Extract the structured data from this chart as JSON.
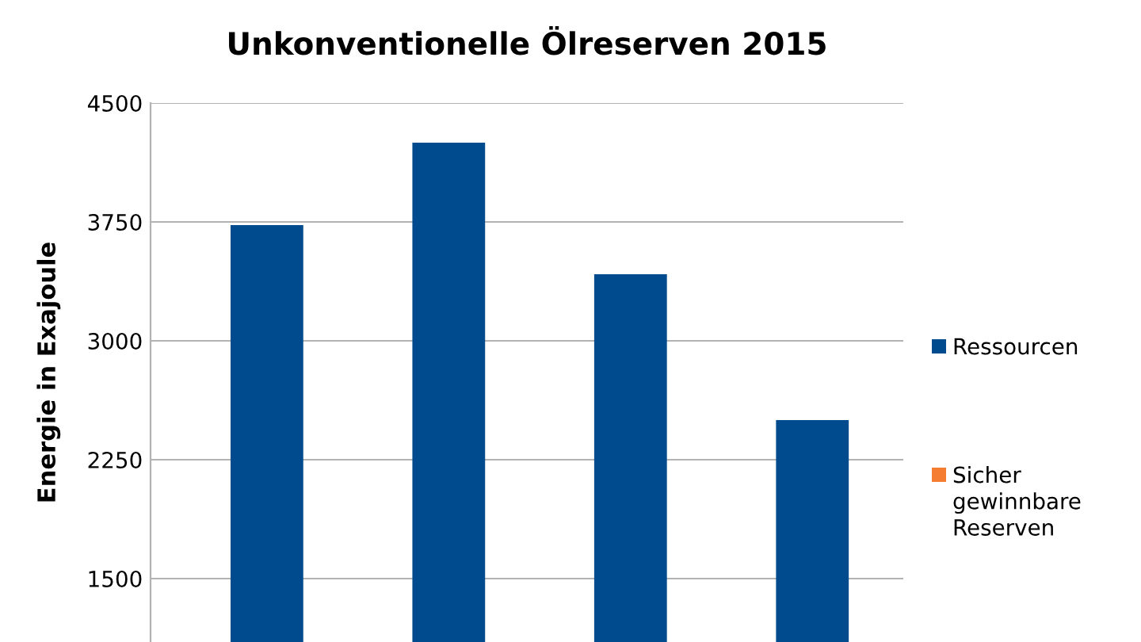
{
  "chart_data": {
    "type": "bar",
    "title": "Unkonventionelle Ölreserven 2015",
    "ylabel": "Energie in Exajoule",
    "categories": [
      null,
      null,
      null,
      null
    ],
    "series": [
      {
        "name": "Ressourcen",
        "color": "#004b8d",
        "values": [
          3730,
          4250,
          3420,
          2500
        ]
      },
      {
        "name": "Sicher gewinnbare Reserven",
        "color": "#f47d31",
        "values": [
          null,
          null,
          null,
          null
        ]
      }
    ],
    "ylim": [
      1100,
      4500
    ],
    "yticks": [
      1500,
      2250,
      3000,
      3750,
      4500
    ],
    "grid": "y",
    "legend": "right",
    "tick_labels": "y"
  }
}
